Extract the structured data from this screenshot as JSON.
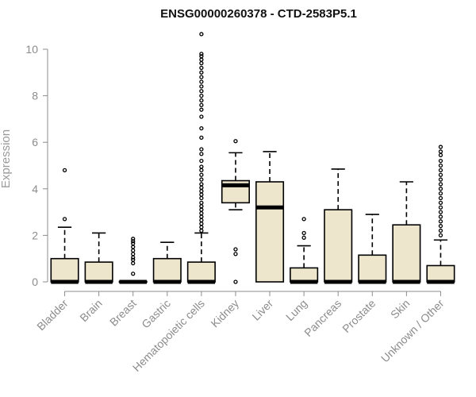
{
  "chart_data": {
    "type": "box",
    "title": "ENSG00000260378 - CTD-2583P5.1",
    "xlabel": "",
    "ylabel": "Expression",
    "ylim": [
      0,
      10
    ],
    "yticks": [
      0,
      2,
      4,
      6,
      8,
      10
    ],
    "grid": false,
    "box_fill": "#ede6cc",
    "box_stroke": "#000000",
    "axis_color": "#8c8c8c",
    "categories": [
      "Bladder",
      "Brain",
      "Breast",
      "Gastric",
      "Hematopoietic cells",
      "Kidney",
      "Liver",
      "Lung",
      "Pancreas",
      "Prostate",
      "Skin",
      "Unknown / Other"
    ],
    "boxes": [
      {
        "category": "Bladder",
        "min": 0,
        "q1": 0,
        "median": 0,
        "q3": 1.0,
        "max": 2.35,
        "outliers": [
          2.7,
          4.8
        ]
      },
      {
        "category": "Brain",
        "min": 0,
        "q1": 0,
        "median": 0,
        "q3": 0.85,
        "max": 2.1,
        "outliers": []
      },
      {
        "category": "Breast",
        "min": 0,
        "q1": 0,
        "median": 0,
        "q3": 0.02,
        "max": 0.02,
        "outliers": [
          0.35,
          0.8,
          0.95,
          1.05,
          1.2,
          1.35,
          1.5,
          1.65,
          1.75,
          1.85
        ]
      },
      {
        "category": "Gastric",
        "min": 0,
        "q1": 0,
        "median": 0,
        "q3": 1.0,
        "max": 1.7,
        "outliers": []
      },
      {
        "category": "Hematopoietic cells",
        "min": 0,
        "q1": 0,
        "median": 0,
        "q3": 0.85,
        "max": 2.1,
        "outliers": [
          2.2,
          2.35,
          2.5,
          2.65,
          2.8,
          2.95,
          3.1,
          3.25,
          3.4,
          3.6,
          3.75,
          3.9,
          4.05,
          4.2,
          4.4,
          4.6,
          4.8,
          4.95,
          5.2,
          5.5,
          5.7,
          6.2,
          6.6,
          7.1,
          7.4,
          7.6,
          7.8,
          8.0,
          8.2,
          8.4,
          8.6,
          8.8,
          9.0,
          9.2,
          9.4,
          9.55,
          9.7,
          9.8,
          10.65
        ]
      },
      {
        "category": "Kidney",
        "min": 3.1,
        "q1": 3.4,
        "median": 4.15,
        "q3": 4.35,
        "max": 5.55,
        "outliers": [
          0,
          1.2,
          1.4,
          6.05
        ]
      },
      {
        "category": "Liver",
        "min": 0,
        "q1": 0,
        "median": 3.2,
        "q3": 4.3,
        "max": 5.6,
        "outliers": []
      },
      {
        "category": "Lung",
        "min": 0,
        "q1": 0,
        "median": 0,
        "q3": 0.6,
        "max": 1.55,
        "outliers": [
          1.9,
          2.1,
          2.7
        ]
      },
      {
        "category": "Pancreas",
        "min": 0,
        "q1": 0,
        "median": 0,
        "q3": 3.1,
        "max": 4.85,
        "outliers": []
      },
      {
        "category": "Prostate",
        "min": 0,
        "q1": 0,
        "median": 0,
        "q3": 1.15,
        "max": 2.9,
        "outliers": []
      },
      {
        "category": "Skin",
        "min": 0,
        "q1": 0,
        "median": 0,
        "q3": 2.45,
        "max": 4.3,
        "outliers": []
      },
      {
        "category": "Unknown / Other",
        "min": 0,
        "q1": 0,
        "median": 0,
        "q3": 0.7,
        "max": 1.8,
        "outliers": [
          2.0,
          2.2,
          2.4,
          2.6,
          2.8,
          3.0,
          3.2,
          3.4,
          3.6,
          3.8,
          4.0,
          4.2,
          4.4,
          4.6,
          4.8,
          5.0,
          5.2,
          5.45,
          5.6,
          5.8
        ]
      }
    ]
  }
}
